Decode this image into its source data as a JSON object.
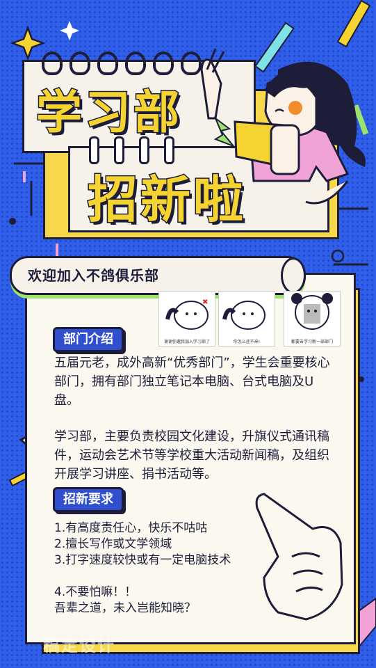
{
  "title": {
    "line1": "学习部",
    "line2": "招新啦"
  },
  "banner": "欢迎加入不鸽俱乐部",
  "memes": [
    {
      "caption": "谢谢你邀我加入学习部了"
    },
    {
      "caption": "你怎么还不来!"
    },
    {
      "caption": "都要去学习新一部部门"
    }
  ],
  "section1": {
    "tag": "部门介绍",
    "para1": "五届元老，成外高新“优秀部门”，学生会重要核心部门，拥有部门独立笔记本电脑、台式电脑及U盘。",
    "para2": "学习部，主要负责校园文化建设，升旗仪式通讯稿件，运动会艺术节等学校重大活动新闻稿，及组织开展学习讲座、捐书活动等。"
  },
  "section2": {
    "tag": "招新要求",
    "items": [
      "1.有高度责任心，快乐不咕咕",
      "2.擅长写作或文学领域",
      "3.打字速度较快或有一定电脑技术",
      "4.不要怕嘛！！"
    ],
    "closing": "吾辈之道，未入岂能知晓？"
  },
  "watermark": "稿定设计",
  "colors": {
    "background": "#2f5fe8",
    "accent_yellow": "#f5d432",
    "card": "#f6f2ea",
    "ink": "#1d1d3a",
    "pink": "#f2a3d6",
    "green": "#9be36b"
  }
}
